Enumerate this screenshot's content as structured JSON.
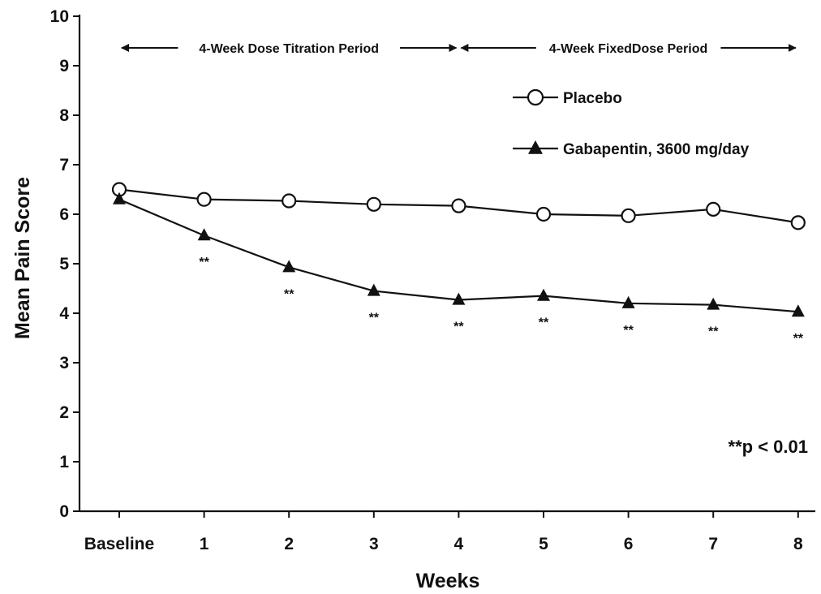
{
  "chart_data": {
    "type": "line",
    "xlabel": "Weeks",
    "ylabel": "Mean Pain Score",
    "ylim": [
      0,
      10
    ],
    "yticks": [
      "0",
      "1",
      "2",
      "3",
      "4",
      "5",
      "6",
      "7",
      "8",
      "9",
      "10"
    ],
    "categories": [
      "Baseline",
      "1",
      "2",
      "3",
      "4",
      "5",
      "6",
      "7",
      "8"
    ],
    "series": [
      {
        "name": "Placebo",
        "marker": "open-circle",
        "values": [
          6.5,
          6.3,
          6.27,
          6.2,
          6.17,
          6.0,
          5.97,
          6.1,
          5.83
        ]
      },
      {
        "name": "Gabapentin, 3600 mg/day",
        "marker": "filled-triangle",
        "values": [
          6.3,
          5.57,
          4.93,
          4.45,
          4.27,
          4.35,
          4.2,
          4.17,
          4.03
        ]
      }
    ],
    "significance": {
      "mark": "**",
      "categories": [
        "1",
        "2",
        "3",
        "4",
        "5",
        "6",
        "7",
        "8"
      ]
    },
    "periods": [
      {
        "label": "4-Week Dose Titration Period",
        "from": "Baseline",
        "to": "4"
      },
      {
        "label": "4-Week FixedDose Period",
        "from": "4",
        "to": "8"
      }
    ],
    "annotation": "**p < 0.01",
    "legend_position": "top-right",
    "grid": false
  }
}
